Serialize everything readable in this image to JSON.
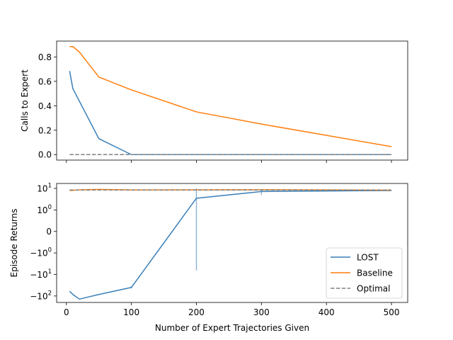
{
  "chart_data": [
    {
      "type": "line",
      "ylabel": "Calls to Expert",
      "xlabel": "",
      "xlim": [
        -15,
        525
      ],
      "ylim": [
        -0.045,
        0.93
      ],
      "yticks": [
        0.0,
        0.2,
        0.4,
        0.6,
        0.8
      ],
      "ytick_labels": [
        "0.0",
        "0.2",
        "0.4",
        "0.6",
        "0.8"
      ],
      "xticks": [
        0,
        100,
        200,
        300,
        400,
        500
      ],
      "x_tick_labels_visible": false,
      "series": [
        {
          "name": "LOST",
          "color": "#3a7fb7",
          "points": [
            [
              5,
              0.685
            ],
            [
              10,
              0.54
            ],
            [
              50,
              0.13
            ],
            [
              100,
              0.0
            ],
            [
              200,
              0.0
            ],
            [
              300,
              0.0
            ],
            [
              500,
              0.0
            ]
          ]
        },
        {
          "name": "Baseline",
          "color": "#ff7f0e",
          "points": [
            [
              5,
              0.885
            ],
            [
              10,
              0.885
            ],
            [
              20,
              0.84
            ],
            [
              50,
              0.635
            ],
            [
              100,
              0.53
            ],
            [
              200,
              0.35
            ],
            [
              300,
              0.25
            ],
            [
              500,
              0.065
            ]
          ]
        },
        {
          "name": "Optimal",
          "color": "#808080",
          "dashed": true,
          "points": [
            [
              5,
              0.0
            ],
            [
              500,
              0.0
            ]
          ]
        }
      ]
    },
    {
      "type": "line",
      "yscale": "symlog",
      "ylabel": "Episode Returns",
      "xlabel": "Number of Expert Trajectories Given",
      "xlim": [
        -15,
        525
      ],
      "ylim": [
        -200,
        17
      ],
      "yticks": [
        10,
        1,
        0,
        -1,
        -10,
        -100
      ],
      "ytick_labels": [
        {
          "base": "10",
          "sup": "1"
        },
        {
          "base": "10",
          "sup": "0"
        },
        {
          "base": "0",
          "sup": ""
        },
        {
          "base": "−10",
          "sup": "0"
        },
        {
          "base": "−10",
          "sup": "1"
        },
        {
          "base": "−10",
          "sup": "2"
        }
      ],
      "xticks": [
        0,
        100,
        200,
        300,
        400,
        500
      ],
      "xtick_labels": [
        "0",
        "100",
        "200",
        "300",
        "400",
        "500"
      ],
      "legend": {
        "placement": "lower-right",
        "entries": [
          "LOST",
          "Baseline",
          "Optimal"
        ]
      },
      "series": [
        {
          "name": "LOST",
          "color": "#3a7fb7",
          "points": [
            [
              5,
              -60
            ],
            [
              10,
              -85
            ],
            [
              20,
              -140
            ],
            [
              50,
              -85
            ],
            [
              100,
              -40
            ],
            [
              200,
              3.5
            ],
            [
              300,
              7.2
            ],
            [
              500,
              8.0
            ]
          ],
          "error_bars": [
            [
              200,
              -6.5,
              10.0
            ],
            [
              300,
              5.0,
              9.0
            ],
            [
              100,
              -45,
              -35
            ]
          ]
        },
        {
          "name": "Baseline",
          "color": "#ff7f0e",
          "points": [
            [
              5,
              8.0
            ],
            [
              20,
              8.6
            ],
            [
              50,
              9.0
            ],
            [
              100,
              8.5
            ],
            [
              200,
              8.6
            ],
            [
              300,
              8.7
            ],
            [
              500,
              8.3
            ]
          ]
        },
        {
          "name": "Optimal",
          "color": "#808080",
          "dashed": true,
          "points": [
            [
              5,
              8.4
            ],
            [
              500,
              8.4
            ]
          ]
        }
      ]
    }
  ]
}
